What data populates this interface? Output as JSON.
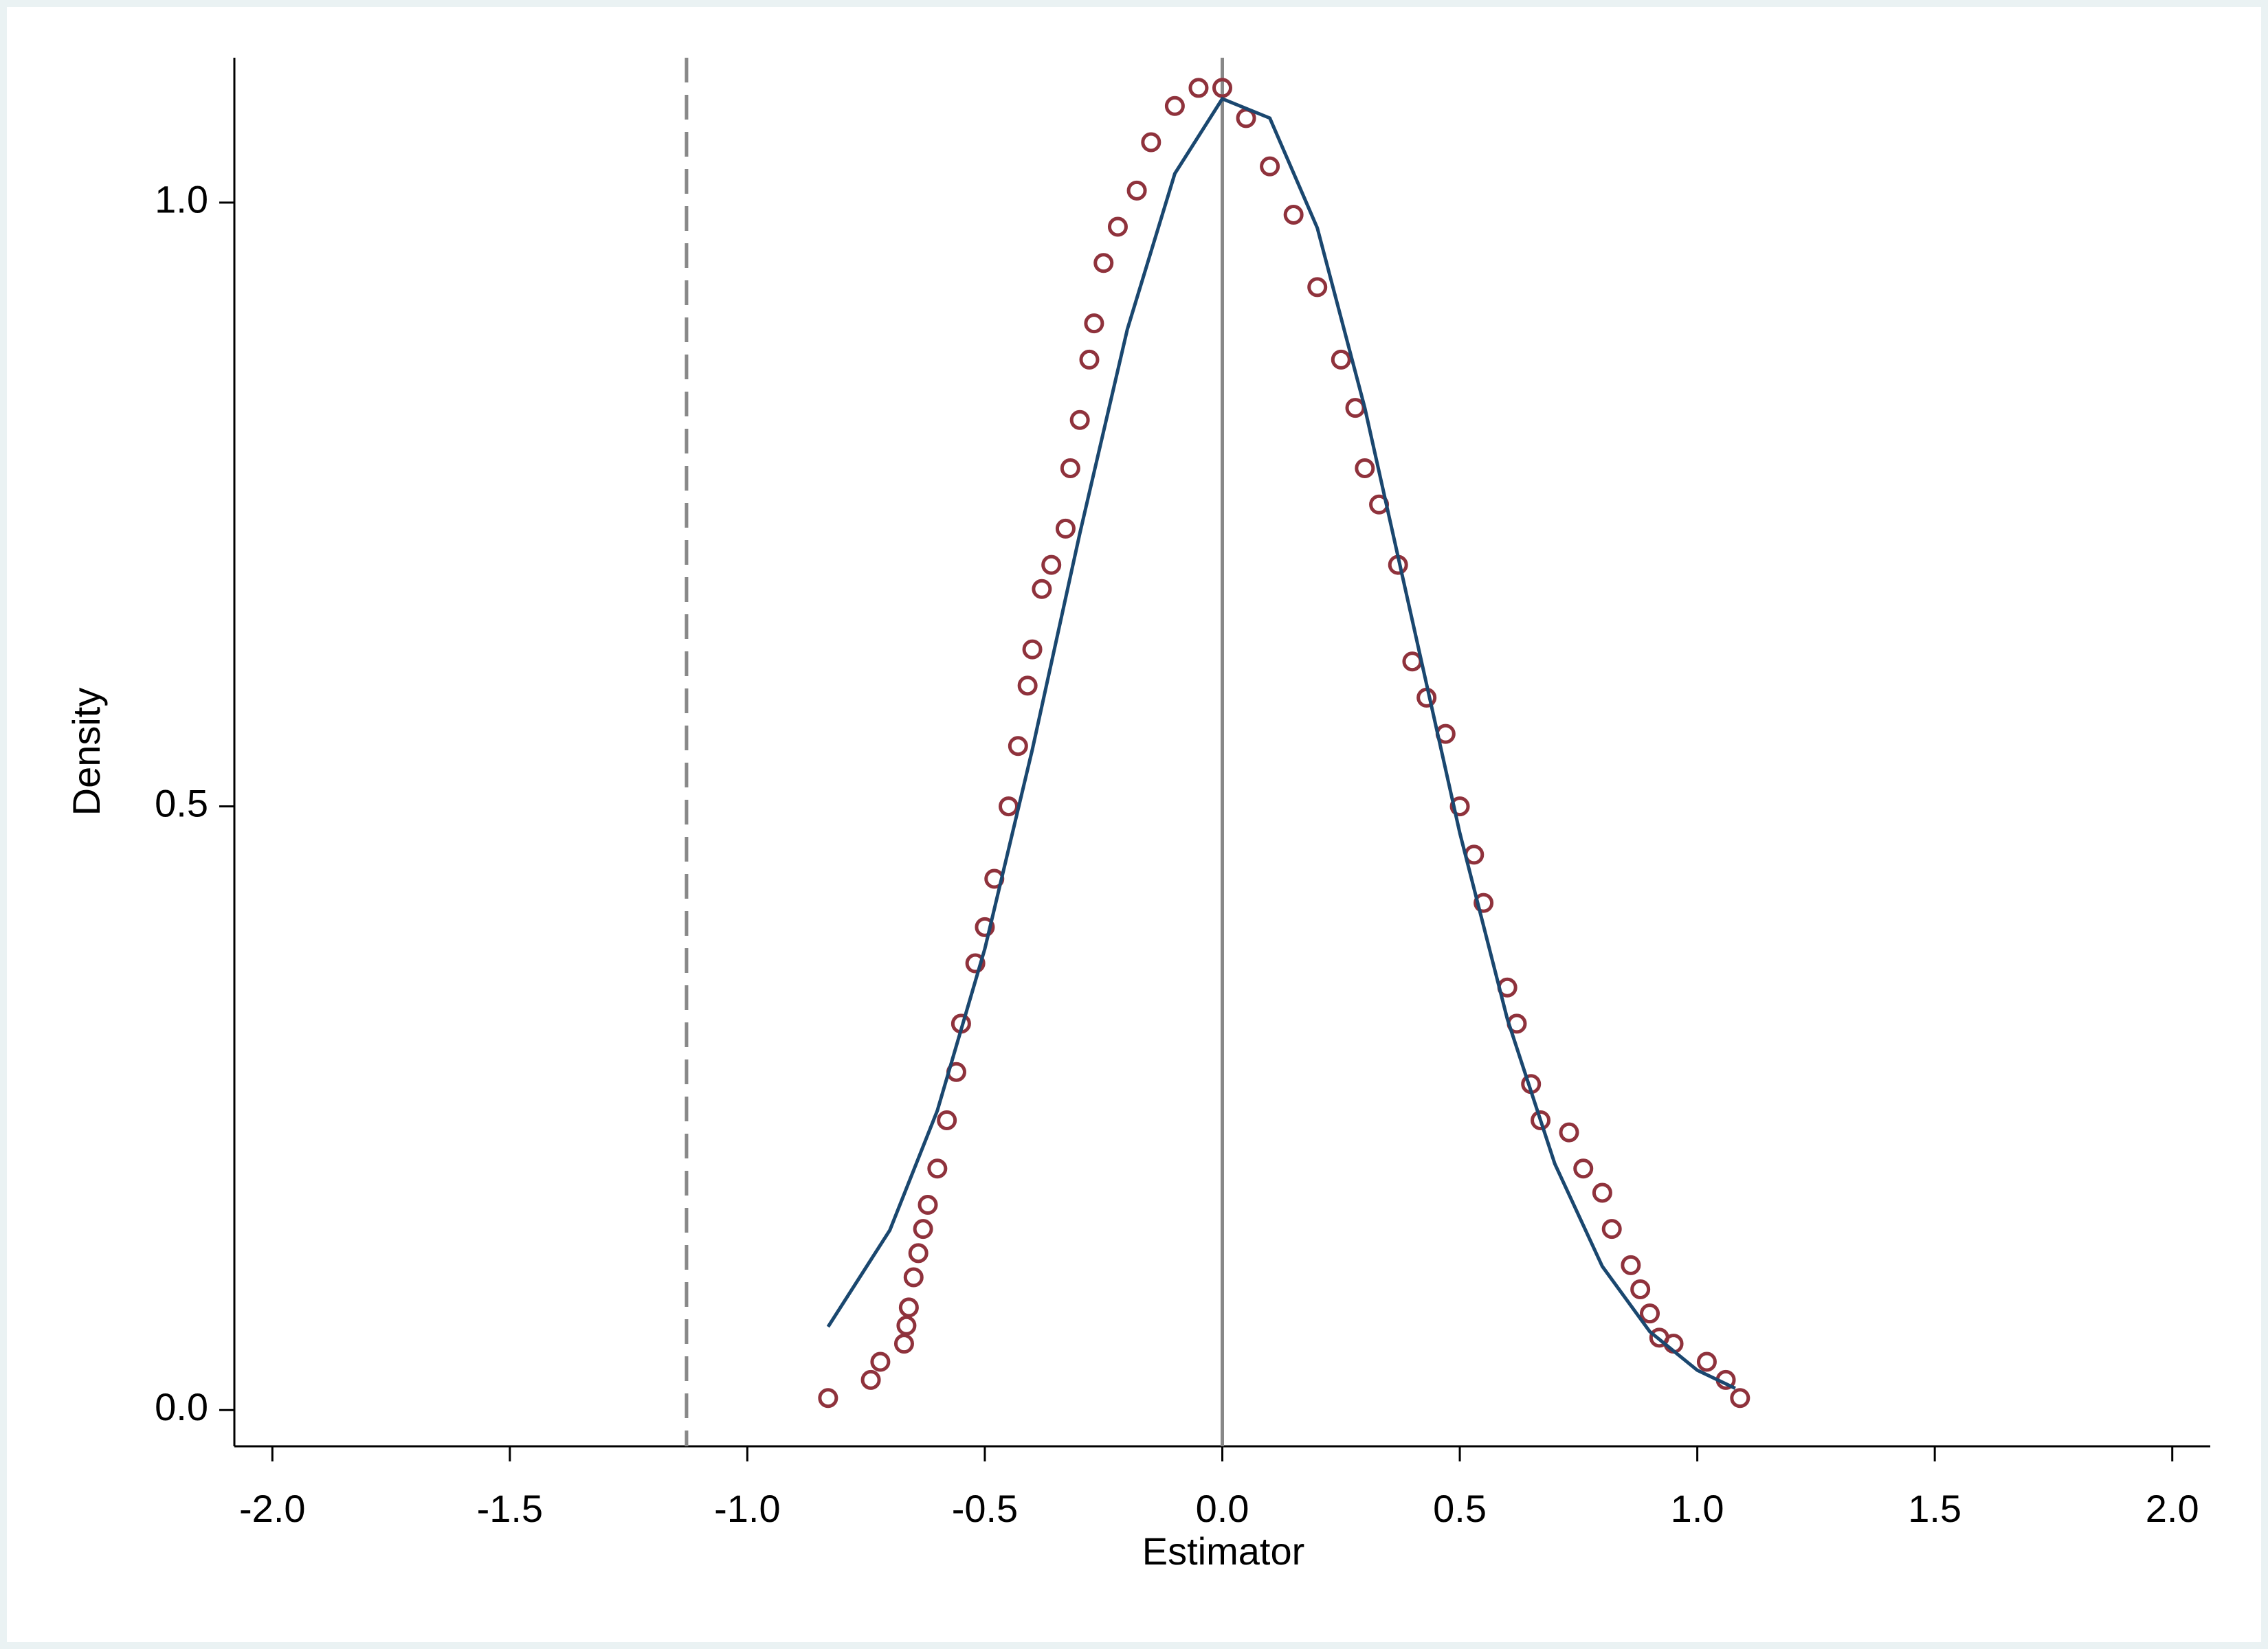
{
  "chart_data": {
    "type": "scatter",
    "xlabel": "Estimator",
    "ylabel": "Density",
    "xlim": [
      -2.08,
      2.08
    ],
    "ylim": [
      -0.03,
      1.12
    ],
    "xticks": [
      {
        "value": -2,
        "label": "-2.0"
      },
      -1.5,
      {
        "value": -1,
        "label": "-1.0"
      },
      -0.5,
      {
        "value": 0,
        "label": "0.0"
      },
      0.5,
      {
        "value": 1,
        "label": "1.0"
      },
      1.5,
      {
        "value": 2,
        "label": "2.0"
      }
    ],
    "yticks": [
      {
        "value": 0,
        "label": "0.0"
      },
      0.5,
      {
        "value": 1,
        "label": "1.0"
      }
    ],
    "grid": false,
    "xlines": [
      {
        "value": -1.128,
        "style": "dashed",
        "color": "#888888"
      },
      {
        "value": 0,
        "style": "solid",
        "color": "#888888"
      }
    ],
    "series": [
      {
        "type": "scatter",
        "color": "#8f323c",
        "x": [
          -0.83,
          -0.74,
          -0.72,
          -0.67,
          -0.665,
          -0.66,
          -0.65,
          -0.64,
          -0.63,
          -0.62,
          -0.6,
          -0.58,
          -0.56,
          -0.55,
          -0.52,
          -0.5,
          -0.48,
          -0.45,
          -0.43,
          -0.41,
          -0.4,
          -0.38,
          -0.36,
          -0.33,
          -0.32,
          -0.3,
          -0.28,
          -0.27,
          -0.25,
          -0.22,
          -0.18,
          -0.15,
          -0.1,
          -0.05,
          0.0,
          0.05,
          0.1,
          0.15,
          0.2,
          0.25,
          0.28,
          0.3,
          0.33,
          0.37,
          0.4,
          0.43,
          0.47,
          0.5,
          0.53,
          0.55,
          0.6,
          0.62,
          0.65,
          0.67,
          0.73,
          0.76,
          0.8,
          0.82,
          0.86,
          0.88,
          0.9,
          0.92,
          0.95,
          1.02,
          1.06,
          1.09
        ],
        "values": [
          0.01,
          0.025,
          0.04,
          0.055,
          0.07,
          0.085,
          0.11,
          0.13,
          0.15,
          0.17,
          0.2,
          0.24,
          0.28,
          0.32,
          0.37,
          0.4,
          0.44,
          0.5,
          0.55,
          0.6,
          0.63,
          0.68,
          0.7,
          0.73,
          0.78,
          0.82,
          0.87,
          0.9,
          0.95,
          0.98,
          1.01,
          1.05,
          1.08,
          1.095,
          1.095,
          1.07,
          1.03,
          0.99,
          0.93,
          0.87,
          0.83,
          0.78,
          0.75,
          0.7,
          0.62,
          0.59,
          0.56,
          0.5,
          0.46,
          0.42,
          0.35,
          0.32,
          0.27,
          0.24,
          0.23,
          0.2,
          0.18,
          0.15,
          0.12,
          0.1,
          0.08,
          0.06,
          0.055,
          0.04,
          0.025,
          0.01
        ]
      },
      {
        "type": "line",
        "color": "#1a476f",
        "x": [
          -0.83,
          -0.7,
          -0.6,
          -0.5,
          -0.4,
          -0.3,
          -0.2,
          -0.1,
          0,
          0.1,
          0.2,
          0.3,
          0.4,
          0.5,
          0.6,
          0.7,
          0.8,
          0.9,
          1.0,
          1.08
        ],
        "values": [
          0.069,
          0.149,
          0.248,
          0.382,
          0.547,
          0.726,
          0.895,
          1.024,
          1.086,
          1.07,
          0.979,
          0.83,
          0.654,
          0.478,
          0.324,
          0.204,
          0.119,
          0.065,
          0.033,
          0.018
        ]
      }
    ]
  }
}
